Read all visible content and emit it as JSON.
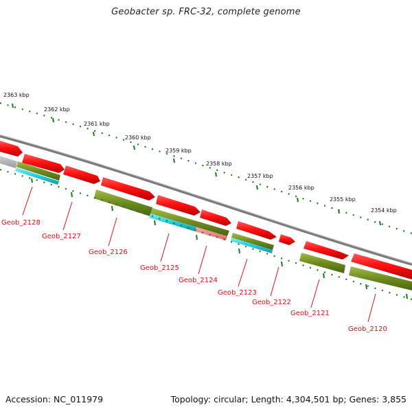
{
  "title": "Geobacter sp. FRC-32, complete genome",
  "accession_text": "Accession: NC_011979",
  "summary_text": "Topology: circular; Length: 4,304,501 bp; Genes: 3,855",
  "ruler": {
    "labels": [
      "2363 kbp",
      "2362 kbp",
      "2361 kbp",
      "2360 kbp",
      "2359 kbp",
      "2358 kbp",
      "2357 kbp",
      "2356 kbp",
      "2355 kbp",
      "2354 kbp"
    ]
  },
  "genes": [
    {
      "label": "Geob_2128"
    },
    {
      "label": "Geob_2127"
    },
    {
      "label": "Geob_2126"
    },
    {
      "label": "Geob_2125"
    },
    {
      "label": "Geob_2124"
    },
    {
      "label": "Geob_2123"
    },
    {
      "label": "Geob_2122"
    },
    {
      "label": "Geob_2121"
    },
    {
      "label": "Geob_2120"
    }
  ],
  "colors": {
    "gene_red": "#ee1111",
    "cds_olive": "#6e8b1e",
    "rna_cyan": "#22ccdd",
    "misc_pink": "#ee7777",
    "backbone_grey": "#8a8a8a",
    "tick_green": "#1b7a1b",
    "label_red": "#dd1111",
    "text_dark": "#111111"
  }
}
